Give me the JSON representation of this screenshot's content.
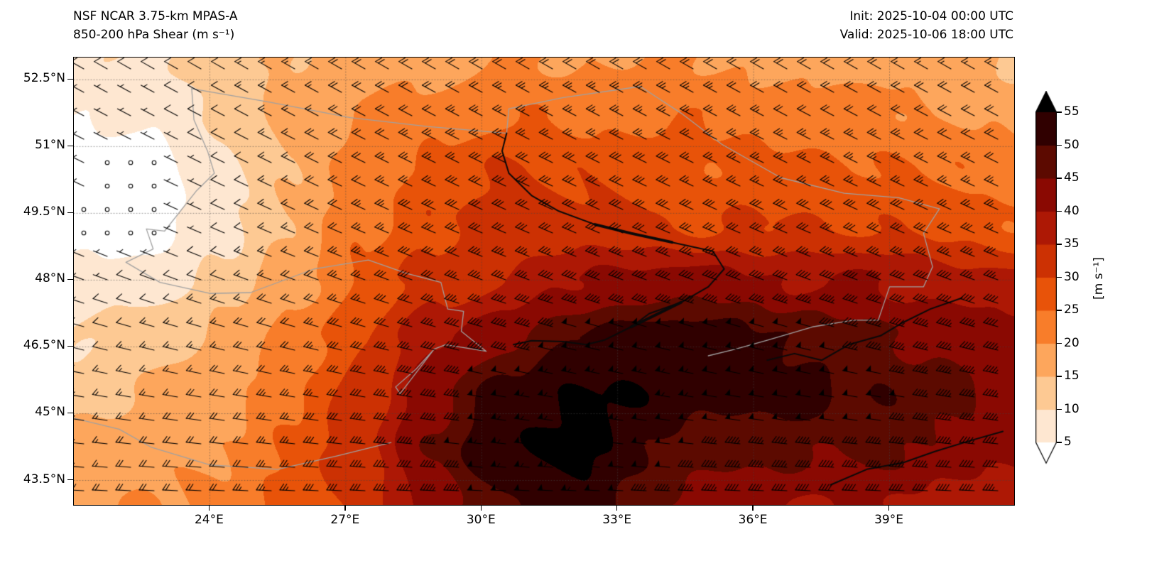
{
  "header": {
    "title_line1": "NSF NCAR 3.75-km MPAS-A",
    "title_line2": "850-200 hPa Shear (m s⁻¹)",
    "init_label": "Init: 2025-10-04 00:00 UTC",
    "valid_label": "Valid: 2025-10-06 18:00 UTC"
  },
  "chart_data": {
    "type": "heatmap",
    "title": "850-200 hPa Shear (m s⁻¹)",
    "model": "NSF NCAR 3.75-km MPAS-A",
    "init_time": "2025-10-04 00:00 UTC",
    "valid_time": "2025-10-06 18:00 UTC",
    "units": "m s⁻¹",
    "lon_range": [
      21.0,
      41.75
    ],
    "lat_range": [
      42.95,
      53.0
    ],
    "x_ticks": [
      {
        "value": 24,
        "label": "24°E"
      },
      {
        "value": 27,
        "label": "27°E"
      },
      {
        "value": 30,
        "label": "30°E"
      },
      {
        "value": 33,
        "label": "33°E"
      },
      {
        "value": 36,
        "label": "36°E"
      },
      {
        "value": 39,
        "label": "39°E"
      }
    ],
    "y_ticks": [
      {
        "value": 52.5,
        "label": "52.5°N"
      },
      {
        "value": 51.0,
        "label": "51°N"
      },
      {
        "value": 49.5,
        "label": "49.5°N"
      },
      {
        "value": 48.0,
        "label": "48°N"
      },
      {
        "value": 46.5,
        "label": "46.5°N"
      },
      {
        "value": 45.0,
        "label": "45°N"
      },
      {
        "value": 43.5,
        "label": "43.5°N"
      }
    ],
    "grid_on": true,
    "contour_level_step": 5,
    "colors": [
      "#ffffff",
      "#fee7d1",
      "#fdc993",
      "#fda65c",
      "#f87d2a",
      "#e85309",
      "#cc3103",
      "#ad1805",
      "#8a0902",
      "#5c0a00",
      "#300000",
      "#000000"
    ],
    "colorbar": {
      "min": 5,
      "max": 55,
      "ticks": [
        5,
        10,
        15,
        20,
        25,
        30,
        35,
        40,
        45,
        50,
        55
      ],
      "label": "[m s⁻¹]",
      "extend": "both"
    },
    "shear_grid": {
      "cols": 14,
      "rows": 9,
      "note": "850-200 hPa shear magnitude (m/s), rows north to south over lon_range/lat_range",
      "values": [
        [
          8,
          10,
          12,
          16,
          18,
          18,
          20,
          20,
          20,
          20,
          18,
          18,
          16,
          14
        ],
        [
          5,
          6,
          10,
          16,
          20,
          22,
          24,
          24,
          24,
          24,
          22,
          22,
          20,
          18
        ],
        [
          3,
          1,
          8,
          16,
          22,
          26,
          30,
          30,
          28,
          26,
          26,
          26,
          24,
          22
        ],
        [
          2,
          1,
          8,
          16,
          24,
          30,
          32,
          32,
          30,
          30,
          30,
          30,
          28,
          26
        ],
        [
          6,
          8,
          12,
          18,
          26,
          32,
          36,
          40,
          42,
          42,
          40,
          40,
          38,
          36
        ],
        [
          10,
          13,
          16,
          22,
          30,
          38,
          44,
          50,
          52,
          52,
          50,
          46,
          44,
          42
        ],
        [
          13,
          16,
          18,
          24,
          32,
          44,
          52,
          56,
          54,
          52,
          52,
          50,
          46,
          44
        ],
        [
          16,
          18,
          20,
          26,
          34,
          46,
          56,
          56,
          50,
          46,
          46,
          46,
          44,
          42
        ],
        [
          18,
          20,
          22,
          26,
          32,
          42,
          50,
          52,
          46,
          42,
          40,
          40,
          38,
          36
        ]
      ]
    },
    "wind_barbs": {
      "speed_source": "shear_grid",
      "dir_rows_deg_from": [
        300,
        298,
        296,
        294,
        290,
        285,
        280,
        276,
        272
      ],
      "spacing_px": 33,
      "calm_threshold": 2.5
    },
    "overlays": {
      "border_color": "#a0a0a0",
      "river_color": "#0a0a0a",
      "borders": [
        [
          [
            23.6,
            52.3
          ],
          [
            23.65,
            51.6
          ],
          [
            23.95,
            50.9
          ],
          [
            24.1,
            50.4
          ],
          [
            23.7,
            50.0
          ],
          [
            23.0,
            49.1
          ],
          [
            22.6,
            49.15
          ],
          [
            22.75,
            48.7
          ],
          [
            22.15,
            48.4
          ]
        ],
        [
          [
            23.6,
            52.3
          ],
          [
            25.3,
            52.0
          ],
          [
            27.1,
            51.65
          ],
          [
            28.8,
            51.45
          ],
          [
            30.55,
            51.3
          ],
          [
            30.6,
            51.85
          ],
          [
            31.8,
            52.1
          ],
          [
            33.5,
            52.35
          ],
          [
            34.4,
            51.75
          ],
          [
            35.3,
            51.05
          ],
          [
            36.6,
            50.3
          ],
          [
            38.0,
            49.95
          ],
          [
            39.2,
            49.85
          ],
          [
            40.1,
            49.6
          ]
        ],
        [
          [
            40.1,
            49.6
          ],
          [
            39.75,
            49.05
          ],
          [
            39.95,
            48.3
          ],
          [
            39.75,
            47.85
          ],
          [
            39.0,
            47.85
          ],
          [
            38.75,
            47.1
          ],
          [
            38.2,
            47.1
          ]
        ],
        [
          [
            26.6,
            48.3
          ],
          [
            27.5,
            48.45
          ],
          [
            28.35,
            48.15
          ],
          [
            29.1,
            47.95
          ],
          [
            29.25,
            47.35
          ],
          [
            29.6,
            47.3
          ],
          [
            29.55,
            46.85
          ],
          [
            30.1,
            46.4
          ],
          [
            29.2,
            46.55
          ],
          [
            28.95,
            46.45
          ],
          [
            28.2,
            45.45
          ],
          [
            28.1,
            45.6
          ],
          [
            28.55,
            46.0
          ],
          [
            28.95,
            46.45
          ]
        ],
        [
          [
            22.15,
            48.4
          ],
          [
            22.9,
            47.95
          ],
          [
            24.0,
            47.7
          ],
          [
            24.9,
            47.72
          ],
          [
            26.3,
            48.25
          ],
          [
            26.6,
            48.3
          ]
        ],
        [
          [
            21.0,
            44.9
          ],
          [
            22.0,
            44.65
          ],
          [
            22.7,
            44.25
          ],
          [
            24.0,
            43.85
          ],
          [
            25.5,
            43.75
          ],
          [
            26.8,
            44.05
          ],
          [
            28.0,
            44.35
          ]
        ],
        [
          [
            35.0,
            46.3
          ],
          [
            35.6,
            46.45
          ],
          [
            36.3,
            46.65
          ],
          [
            37.3,
            46.95
          ],
          [
            38.2,
            47.1
          ]
        ]
      ],
      "rivers": [
        {
          "w": 2,
          "pts": [
            [
              30.55,
              51.3
            ],
            [
              30.45,
              50.9
            ],
            [
              30.6,
              50.4
            ],
            [
              31.1,
              49.9
            ],
            [
              31.7,
              49.55
            ],
            [
              32.5,
              49.25
            ],
            [
              33.3,
              49.05
            ],
            [
              34.2,
              48.85
            ],
            [
              35.1,
              48.65
            ],
            [
              35.35,
              48.25
            ],
            [
              35.0,
              47.85
            ],
            [
              34.4,
              47.5
            ],
            [
              33.7,
              47.25
            ],
            [
              33.3,
              46.95
            ],
            [
              32.7,
              46.65
            ],
            [
              32.3,
              46.55
            ]
          ]
        },
        {
          "w": 4,
          "pts": [
            [
              32.5,
              49.25
            ],
            [
              33.3,
              49.05
            ],
            [
              34.2,
              48.85
            ]
          ]
        },
        {
          "w": 4,
          "pts": [
            [
              33.3,
              46.95
            ],
            [
              33.9,
              47.25
            ],
            [
              34.4,
              47.5
            ]
          ]
        },
        {
          "w": 2,
          "pts": [
            [
              32.3,
              46.55
            ],
            [
              31.8,
              46.62
            ],
            [
              31.1,
              46.64
            ],
            [
              30.7,
              46.55
            ]
          ]
        },
        {
          "w": 2,
          "pts": [
            [
              36.3,
              46.2
            ],
            [
              36.9,
              46.35
            ],
            [
              37.5,
              46.2
            ],
            [
              38.1,
              46.55
            ],
            [
              38.8,
              46.75
            ],
            [
              39.3,
              47.05
            ],
            [
              39.9,
              47.35
            ],
            [
              40.6,
              47.6
            ]
          ]
        },
        {
          "w": 2,
          "pts": [
            [
              37.7,
              43.4
            ],
            [
              38.5,
              43.75
            ],
            [
              39.3,
              43.9
            ],
            [
              40.0,
              44.15
            ],
            [
              40.8,
              44.4
            ],
            [
              41.5,
              44.6
            ]
          ]
        }
      ]
    }
  }
}
